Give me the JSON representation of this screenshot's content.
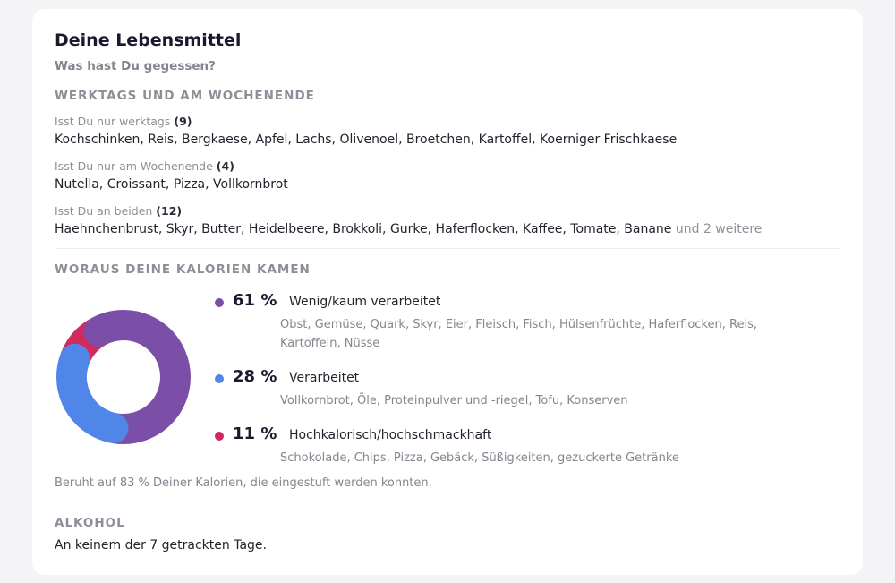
{
  "card": {
    "title": "Deine Lebensmittel",
    "subtitle": "Was hast Du gegessen?"
  },
  "weekdays_section": {
    "heading": "WERKTAGS UND AM WOCHENENDE",
    "groups": [
      {
        "label": "Isst Du nur werktags",
        "count": "(9)",
        "foods": "Kochschinken, Reis, Bergkaese, Apfel, Lachs, Olivenoel, Broetchen, Kartoffel, Koerniger Frischkaese",
        "more": ""
      },
      {
        "label": "Isst Du nur am Wochenende",
        "count": "(4)",
        "foods": "Nutella, Croissant, Pizza, Vollkornbrot",
        "more": ""
      },
      {
        "label": "Isst Du an beiden",
        "count": "(12)",
        "foods": "Haehnchenbrust, Skyr, Butter, Heidelbeere, Brokkoli, Gurke, Haferflocken, Kaffee, Tomate, Banane",
        "more": "und 2 weitere"
      }
    ]
  },
  "calories_section": {
    "heading": "WORAUS DEINE KALORIEN KAMEN",
    "categories": [
      {
        "percent": "61 %",
        "value": 61,
        "name": "Wenig/kaum verarbeitet",
        "description": "Obst, Gemüse, Quark, Skyr, Eier, Fleisch, Fisch, Hülsenfrüchte, Haferflocken, Reis, Kartoffeln, Nüsse",
        "color": "#7b4fa8"
      },
      {
        "percent": "28 %",
        "value": 28,
        "name": "Verarbeitet",
        "description": "Vollkornbrot, Öle, Proteinpulver und -riegel, Tofu, Konserven",
        "color": "#4f86e8"
      },
      {
        "percent": "11 %",
        "value": 11,
        "name": "Hochkalorisch/hochschmackhaft",
        "description": "Schokolade, Chips, Pizza, Gebäck, Süßigkeiten, gezuckerte Getränke",
        "color": "#d12a5c"
      }
    ],
    "note": "Beruht auf 83 % Deiner Kalorien, die eingestuft werden konnten."
  },
  "alcohol_section": {
    "heading": "ALKOHOL",
    "text": "An keinem der 7 getrackten Tage."
  }
}
